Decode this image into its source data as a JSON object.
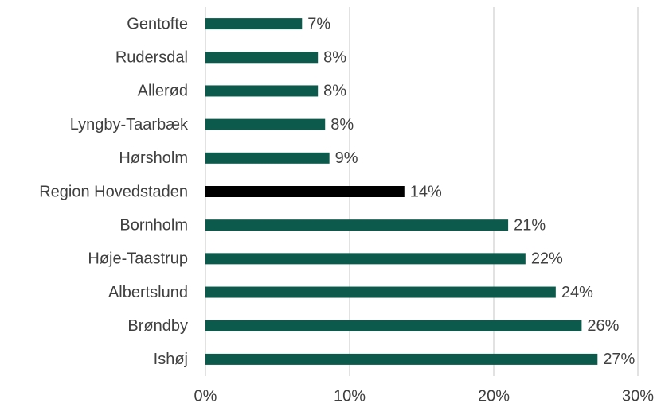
{
  "chart_data": {
    "type": "barh",
    "categories": [
      "Gentofte",
      "Rudersdal",
      "Allerød",
      "Lyngby-Taarbæk",
      "Hørsholm",
      "Region Hovedstaden",
      "Bornholm",
      "Høje-Taastrup",
      "Albertslund",
      "Brøndby",
      "Ishøj"
    ],
    "values": [
      6.7,
      7.8,
      7.8,
      8.3,
      8.6,
      13.8,
      21.0,
      22.2,
      24.3,
      26.1,
      27.2
    ],
    "value_labels": [
      "7%",
      "8%",
      "8%",
      "8%",
      "9%",
      "14%",
      "21%",
      "22%",
      "24%",
      "26%",
      "27%"
    ],
    "colors": [
      "#0c5a4b",
      "#0c5a4b",
      "#0c5a4b",
      "#0c5a4b",
      "#0c5a4b",
      "#000000",
      "#0c5a4b",
      "#0c5a4b",
      "#0c5a4b",
      "#0c5a4b",
      "#0c5a4b"
    ],
    "xlim": [
      0,
      30
    ],
    "xticks": [
      {
        "value": 0,
        "label": "0%"
      },
      {
        "value": 10,
        "label": "10%"
      },
      {
        "value": 20,
        "label": "20%"
      },
      {
        "value": 30,
        "label": "30%"
      }
    ],
    "grid": true
  }
}
